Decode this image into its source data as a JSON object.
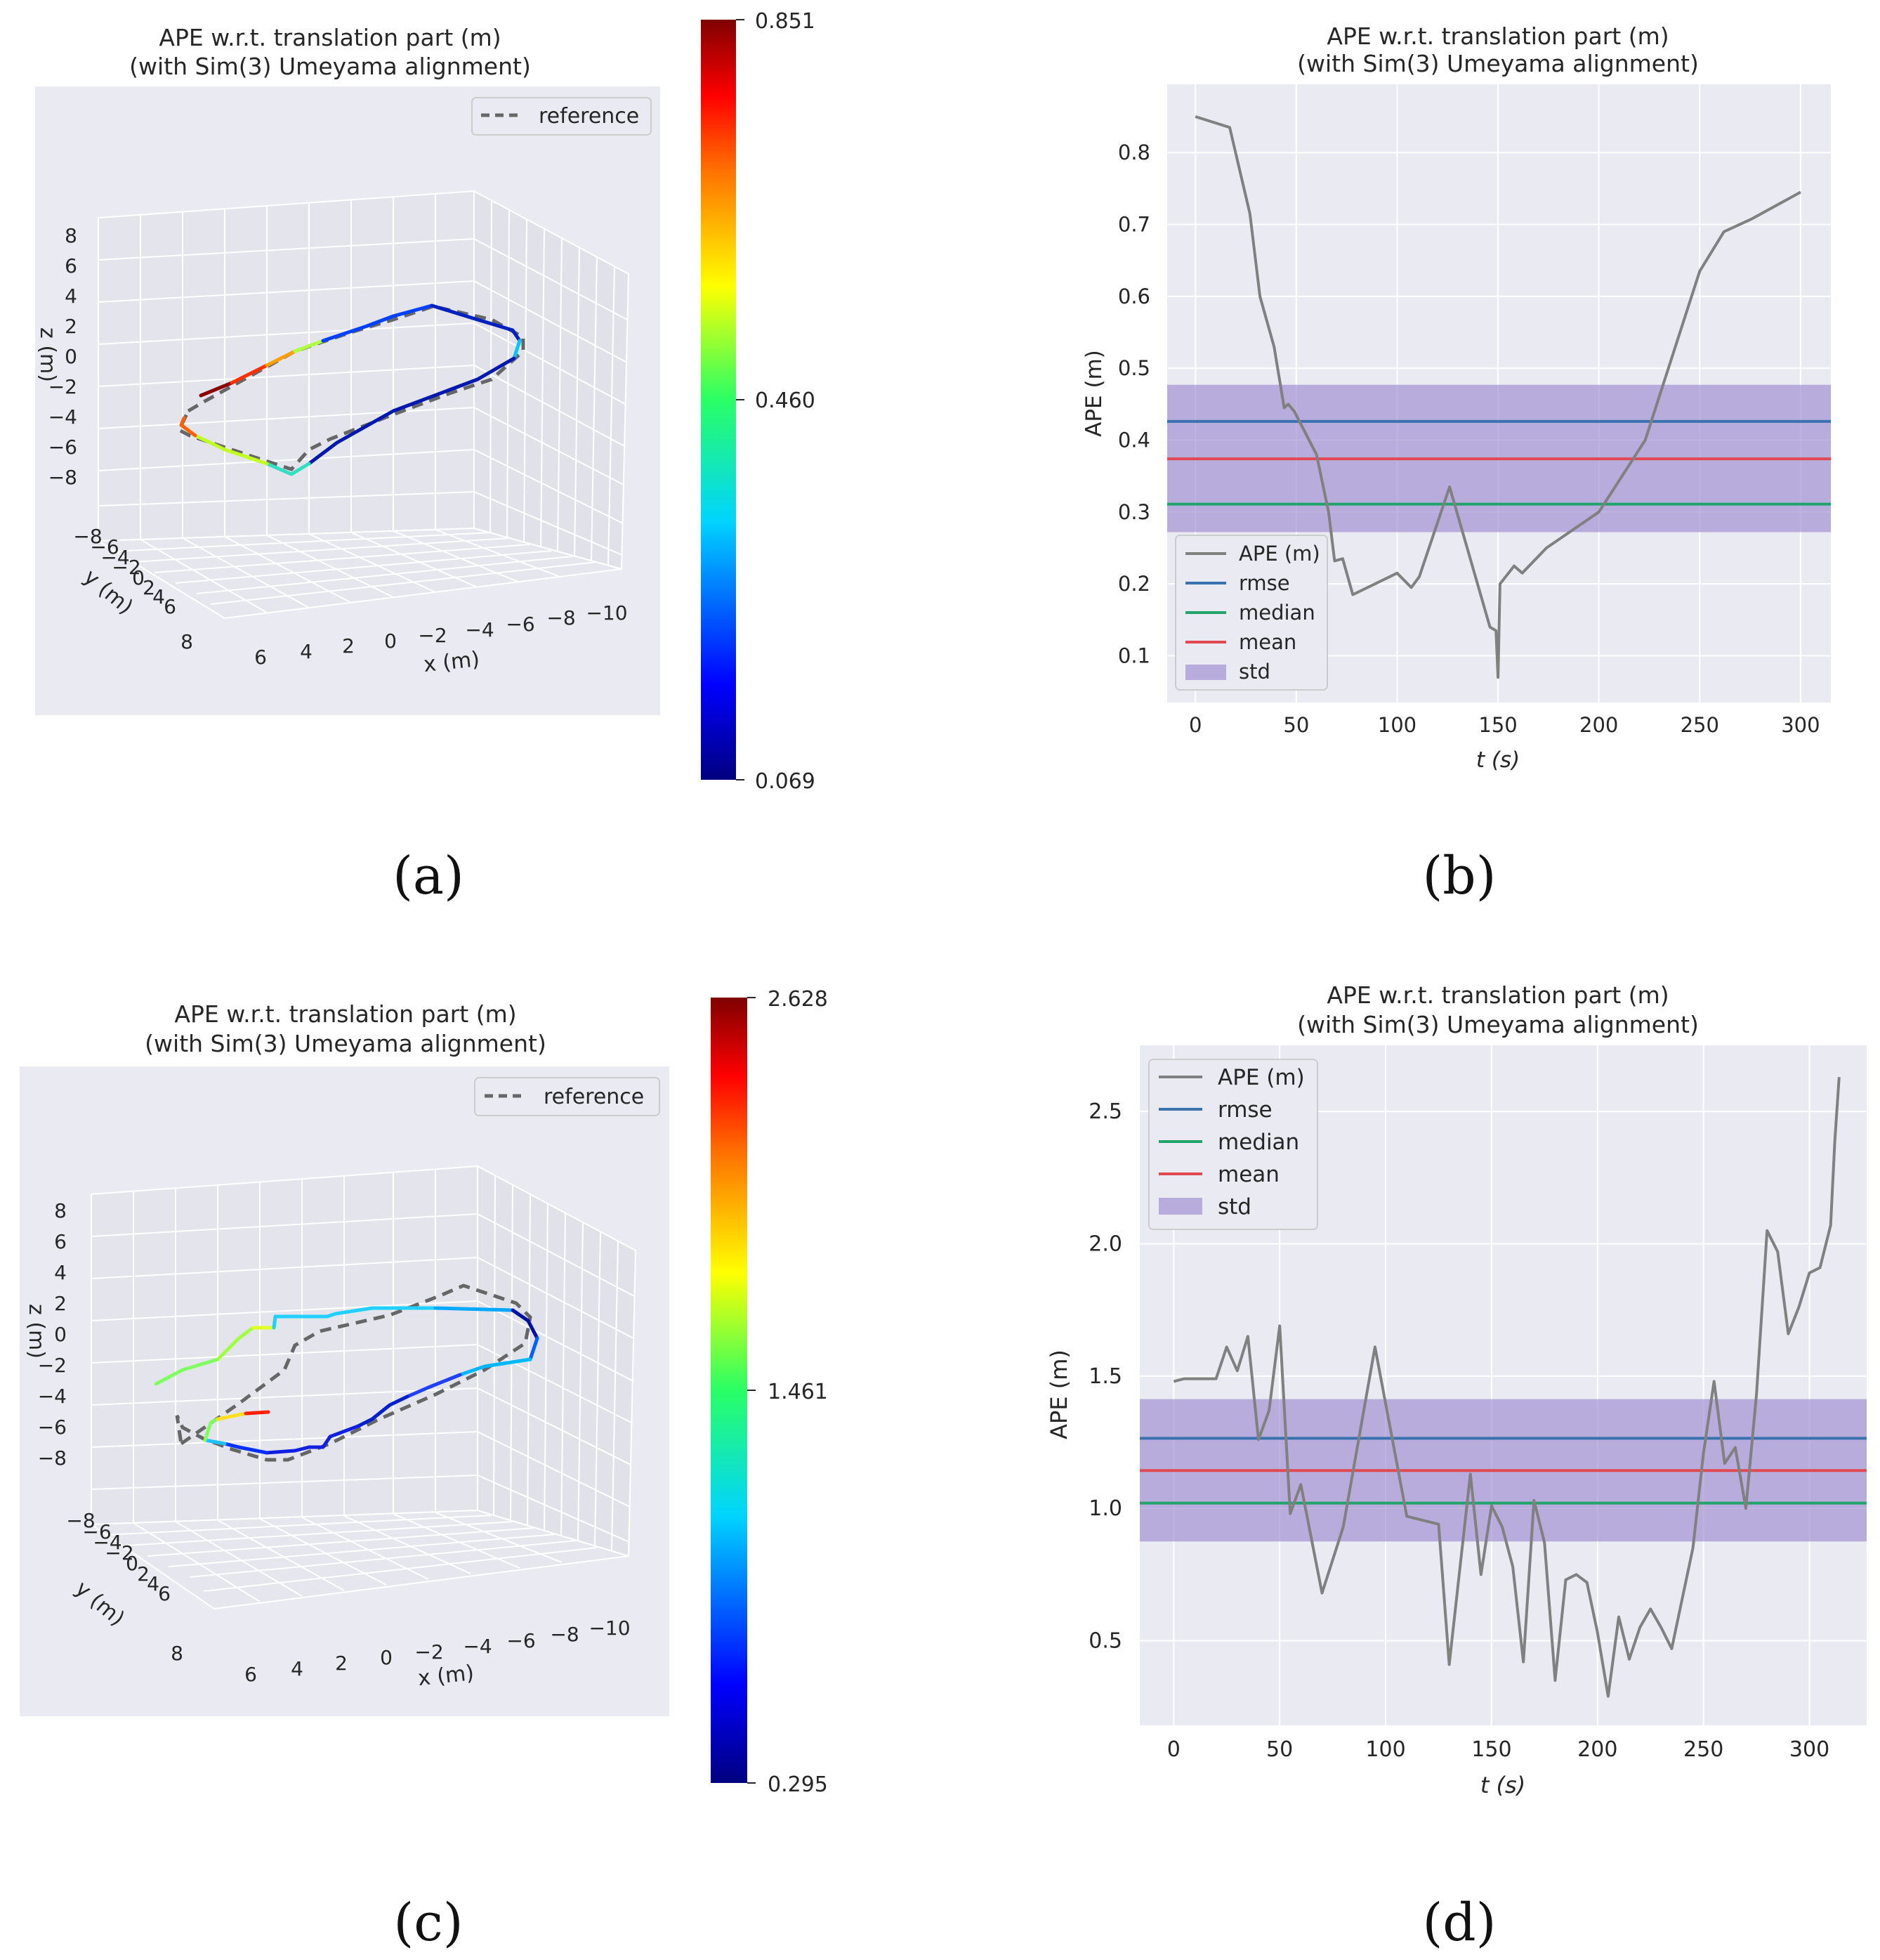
{
  "figure": {
    "colors": {
      "axes_bg": "#eaeaf2",
      "grid": "#ffffff",
      "text": "#262626",
      "ape": "#808080",
      "rmse": "#3a72b0",
      "median": "#21a36a",
      "mean": "#e0494f",
      "std": "#9c8ad0",
      "reference": "#666666"
    },
    "panels": [
      {
        "id": "a",
        "label": "(a)"
      },
      {
        "id": "b",
        "label": "(b)"
      },
      {
        "id": "c",
        "label": "(c)"
      },
      {
        "id": "d",
        "label": "(d)"
      }
    ]
  },
  "chart_data": [
    {
      "id": "a",
      "type": "line",
      "title": "APE w.r.t. translation part (m)",
      "subtitle": "(with Sim(3) Umeyama alignment)",
      "projection": "3d",
      "xlabel": "x (m)",
      "ylabel": "y (m)",
      "zlabel": "z (m)",
      "x_ticks": [
        "6",
        "4",
        "2",
        "0",
        "−2",
        "−4",
        "−6",
        "−8",
        "−10"
      ],
      "y_ticks": [
        "−8",
        "−6",
        "−4",
        "−2",
        "0",
        "2",
        "4",
        "6",
        "8"
      ],
      "z_ticks": [
        "8",
        "6",
        "4",
        "2",
        "0",
        "−2",
        "−4",
        "−6",
        "−8"
      ],
      "legend": [
        "reference"
      ],
      "legend_position": "top-right",
      "colorbar": {
        "min": 0.069,
        "mid": 0.46,
        "max": 0.851,
        "ticks": [
          "0.851",
          "0.460",
          "0.069"
        ],
        "colormap": "jet"
      }
    },
    {
      "id": "b",
      "type": "line",
      "title": "APE w.r.t. translation part (m)",
      "subtitle": "(with Sim(3) Umeyama alignment)",
      "xlabel": "t (s)",
      "ylabel": "APE (m)",
      "xlim": [
        -14,
        315
      ],
      "ylim": [
        0.035,
        0.895
      ],
      "x_ticks": [
        0,
        50,
        100,
        150,
        200,
        250,
        300
      ],
      "y_ticks": [
        0.1,
        0.2,
        0.3,
        0.4,
        0.5,
        0.6,
        0.7,
        0.8
      ],
      "y_tick_labels": [
        "0.1",
        "0.2",
        "0.3",
        "0.4",
        "0.5",
        "0.6",
        "0.7",
        "0.8"
      ],
      "x_tick_labels": [
        "0",
        "50",
        "100",
        "150",
        "200",
        "250",
        "300"
      ],
      "legend": [
        "APE (m)",
        "rmse",
        "median",
        "mean",
        "std"
      ],
      "legend_position": "lower-left",
      "stats": {
        "rmse": 0.426,
        "median": 0.311,
        "mean": 0.374,
        "std_low": 0.272,
        "std_high": 0.477
      },
      "series": [
        {
          "name": "APE (m)",
          "x": [
            0,
            17,
            27,
            32,
            39,
            44,
            46,
            49,
            60,
            66,
            69,
            73,
            78,
            100,
            107,
            111,
            126,
            146,
            149,
            150,
            151,
            158,
            162,
            174,
            200,
            223,
            250,
            262,
            276,
            300
          ],
          "y": [
            0.85,
            0.835,
            0.715,
            0.6,
            0.53,
            0.445,
            0.45,
            0.44,
            0.38,
            0.3,
            0.232,
            0.235,
            0.185,
            0.215,
            0.195,
            0.21,
            0.335,
            0.14,
            0.135,
            0.07,
            0.2,
            0.225,
            0.215,
            0.25,
            0.3,
            0.4,
            0.635,
            0.69,
            0.708,
            0.745
          ]
        }
      ]
    },
    {
      "id": "c",
      "type": "line",
      "title": "APE w.r.t. translation part (m)",
      "subtitle": "(with Sim(3) Umeyama alignment)",
      "projection": "3d",
      "xlabel": "x (m)",
      "ylabel": "y (m)",
      "zlabel": "z (m)",
      "x_ticks": [
        "6",
        "4",
        "2",
        "0",
        "−2",
        "−4",
        "−6",
        "−8",
        "−10"
      ],
      "y_ticks": [
        "−8",
        "−6",
        "−4",
        "−2",
        "0",
        "2",
        "4",
        "6",
        "8"
      ],
      "z_ticks": [
        "8",
        "6",
        "4",
        "2",
        "0",
        "−2",
        "−4",
        "−6",
        "−8"
      ],
      "legend": [
        "reference"
      ],
      "legend_position": "top-right",
      "colorbar": {
        "min": 0.295,
        "mid": 1.461,
        "max": 2.628,
        "ticks": [
          "2.628",
          "1.461",
          "0.295"
        ],
        "colormap": "jet"
      }
    },
    {
      "id": "d",
      "type": "line",
      "title": "APE w.r.t. translation part (m)",
      "subtitle": "(with Sim(3) Umeyama alignment)",
      "xlabel": "t (s)",
      "ylabel": "APE (m)",
      "xlim": [
        -16,
        327
      ],
      "ylim": [
        0.18,
        2.75
      ],
      "x_ticks": [
        0,
        50,
        100,
        150,
        200,
        250,
        300
      ],
      "y_ticks": [
        0.5,
        1.0,
        1.5,
        2.0,
        2.5
      ],
      "y_tick_labels": [
        "0.5",
        "1.0",
        "1.5",
        "2.0",
        "2.5"
      ],
      "x_tick_labels": [
        "0",
        "50",
        "100",
        "150",
        "200",
        "250",
        "300"
      ],
      "legend": [
        "APE (m)",
        "rmse",
        "median",
        "mean",
        "std"
      ],
      "legend_position": "top-left",
      "stats": {
        "rmse": 1.265,
        "median": 1.02,
        "mean": 1.143,
        "std_low": 0.875,
        "std_high": 1.413
      },
      "series": [
        {
          "name": "APE (m)",
          "x": [
            0,
            5,
            10,
            15,
            20,
            25,
            30,
            35,
            40,
            45,
            50,
            55,
            60,
            70,
            80,
            95,
            110,
            125,
            130,
            140,
            145,
            150,
            155,
            160,
            165,
            170,
            175,
            180,
            185,
            190,
            195,
            200,
            205,
            210,
            215,
            220,
            225,
            230,
            235,
            240,
            245,
            250,
            255,
            260,
            265,
            270,
            275,
            280,
            285,
            290,
            295,
            300,
            305,
            310,
            312,
            314
          ],
          "y": [
            1.48,
            1.49,
            1.49,
            1.49,
            1.49,
            1.61,
            1.52,
            1.65,
            1.26,
            1.37,
            1.69,
            0.98,
            1.09,
            0.68,
            0.93,
            1.61,
            0.97,
            0.94,
            0.41,
            1.13,
            0.75,
            1.01,
            0.93,
            0.78,
            0.42,
            1.03,
            0.87,
            0.35,
            0.73,
            0.75,
            0.72,
            0.53,
            0.29,
            0.59,
            0.43,
            0.55,
            0.62,
            0.55,
            0.47,
            0.66,
            0.85,
            1.21,
            1.48,
            1.17,
            1.23,
            1.0,
            1.43,
            2.05,
            1.97,
            1.66,
            1.76,
            1.89,
            1.91,
            2.07,
            2.39,
            2.63
          ]
        }
      ]
    }
  ]
}
